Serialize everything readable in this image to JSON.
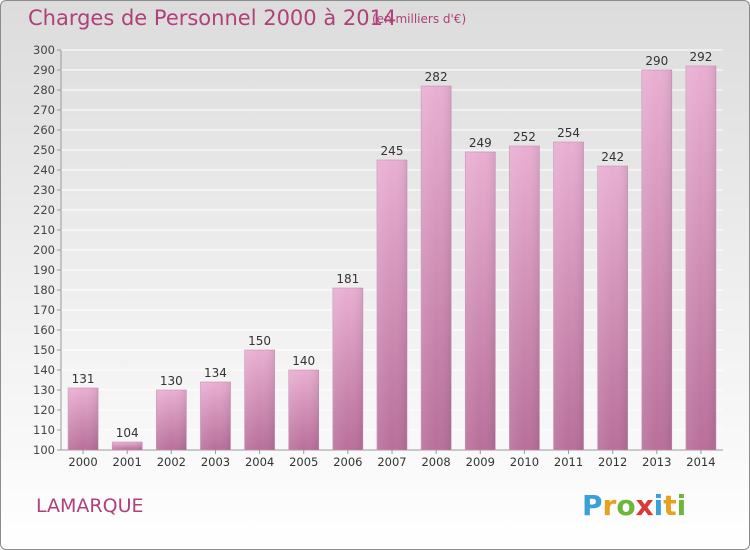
{
  "header": {
    "title": "Charges de Personnel 2000 à 2014",
    "subtitle": "(en milliers d'€)"
  },
  "footer": {
    "commune": "LAMARQUE",
    "logo_letters": [
      "P",
      "r",
      "o",
      "x",
      "i",
      "t",
      "i"
    ],
    "logo_colors": [
      "#3aa0d8",
      "#e8a020",
      "#6cb73a",
      "#d83a3a",
      "#3aa0d8",
      "#e8a020",
      "#6cb73a"
    ]
  },
  "colors": {
    "bar_light": "#e9afd2",
    "bar_dark": "#b86f9a",
    "text": "#b0407a"
  },
  "chart_data": {
    "type": "bar",
    "title": "Charges de Personnel 2000 à 2014",
    "subtitle": "(en milliers d'€)",
    "categories": [
      "2000",
      "2001",
      "2002",
      "2003",
      "2004",
      "2005",
      "2006",
      "2007",
      "2008",
      "2009",
      "2010",
      "2011",
      "2012",
      "2013",
      "2014"
    ],
    "values": [
      131,
      104,
      130,
      134,
      150,
      140,
      181,
      245,
      282,
      249,
      252,
      254,
      242,
      290,
      292
    ],
    "ylim": [
      100,
      300
    ],
    "yticks": [
      100,
      110,
      120,
      130,
      140,
      150,
      160,
      170,
      180,
      190,
      200,
      210,
      220,
      230,
      240,
      250,
      260,
      270,
      280,
      290,
      300
    ],
    "grid": true,
    "xlabel": "",
    "ylabel": ""
  }
}
